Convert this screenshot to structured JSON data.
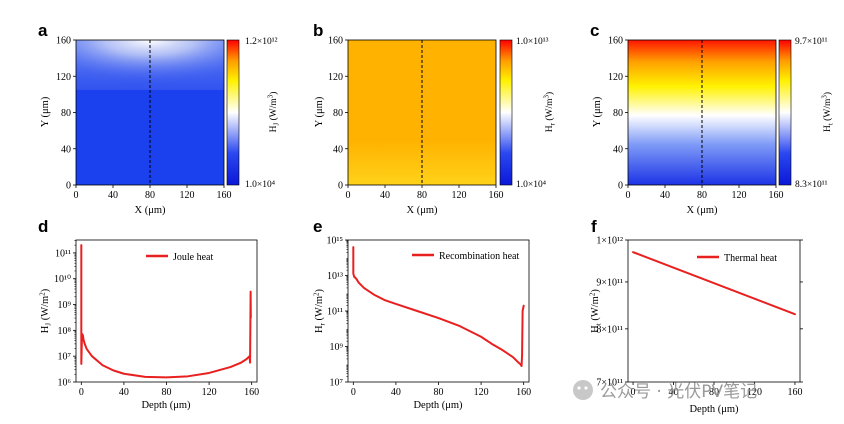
{
  "watermark": "公众号 · 光伏PV笔记",
  "chart_data": [
    {
      "id": "a",
      "panel_label": "a",
      "type": "heatmap",
      "xlabel": "X (μm)",
      "ylabel": "Y (μm)",
      "xlim": [
        0,
        160
      ],
      "ylim": [
        0,
        160
      ],
      "xticks": [
        "0",
        "40",
        "80",
        "120",
        "160"
      ],
      "yticks": [
        "0",
        "40",
        "80",
        "120",
        "160"
      ],
      "colorbar": {
        "label": "HJ (W/m3)",
        "label_main": "H",
        "label_sub": "J",
        "label_unit": " (W/m",
        "label_sup": "3",
        "label_end": ")",
        "max": "1.2×10¹²",
        "min": "1.0×10⁴",
        "scale": "blue-white-yellow-red"
      },
      "notes": "Bright spot near top at X≈80 μm; uniform blue below Y≈105 μm; dashed vertical line at X=80 μm"
    },
    {
      "id": "b",
      "panel_label": "b",
      "type": "heatmap",
      "xlabel": "X (μm)",
      "ylabel": "Y (μm)",
      "xlim": [
        0,
        160
      ],
      "ylim": [
        0,
        160
      ],
      "xticks": [
        "0",
        "40",
        "80",
        "120",
        "160"
      ],
      "yticks": [
        "0",
        "40",
        "80",
        "120",
        "160"
      ],
      "colorbar": {
        "label": "Hr (W/m3)",
        "label_main": "H",
        "label_sub": "r",
        "label_unit": " (W/m",
        "label_sup": "3",
        "label_end": ")",
        "max": "1.0×10¹³",
        "min": "1.0×10⁴",
        "scale": "blue-white-yellow-red"
      },
      "notes": "Nearly uniform orange field, lighter near bottom; dashed vertical line at X=80 μm"
    },
    {
      "id": "c",
      "panel_label": "c",
      "type": "heatmap",
      "xlabel": "X (μm)",
      "ylabel": "Y (μm)",
      "xlim": [
        0,
        160
      ],
      "ylim": [
        0,
        160
      ],
      "xticks": [
        "0",
        "40",
        "80",
        "120",
        "160"
      ],
      "yticks": [
        "0",
        "40",
        "80",
        "120",
        "160"
      ],
      "colorbar": {
        "label": "Ht (W/m3)",
        "label_main": "H",
        "label_sub": "t",
        "label_unit": " (W/m",
        "label_sup": "3",
        "label_end": ")",
        "max": "9.7×10¹¹",
        "min": "8.3×10¹¹",
        "scale": "blue-white-yellow-red"
      },
      "notes": "Linear vertical gradient: red at top, white mid, blue at bottom; dashed vertical line at X=80 μm"
    },
    {
      "id": "d",
      "panel_label": "d",
      "type": "line",
      "xlabel": "Depth (μm)",
      "ylabel": "HJ (W/m2)",
      "ylabel_main": "H",
      "ylabel_sub": "J",
      "ylabel_unit": " (W/m",
      "ylabel_sup": "2",
      "ylabel_end": ")",
      "yscale": "log",
      "xlim": [
        -5,
        165
      ],
      "ylim_log10": [
        6,
        11.5
      ],
      "xticks": [
        0,
        40,
        80,
        120,
        160
      ],
      "yticks_exp": [
        6,
        7,
        8,
        9,
        10,
        11
      ],
      "series": [
        {
          "name": "Joule heat",
          "color": "#e8201f",
          "x": [
            0,
            0,
            0.5,
            1,
            1.5,
            2,
            3,
            5,
            10,
            20,
            30,
            40,
            60,
            80,
            100,
            120,
            140,
            150,
            155,
            158,
            158.5,
            159,
            159.2
          ],
          "y_log10": [
            11.3,
            6.7,
            7.6,
            7.85,
            7.8,
            7.65,
            7.5,
            7.28,
            7.0,
            6.65,
            6.45,
            6.32,
            6.2,
            6.18,
            6.22,
            6.35,
            6.58,
            6.75,
            6.88,
            7.0,
            6.75,
            9.5,
            8.5
          ]
        }
      ]
    },
    {
      "id": "e",
      "panel_label": "e",
      "type": "line",
      "xlabel": "Depth (μm)",
      "ylabel": "Hr (W/m2)",
      "ylabel_main": "H",
      "ylabel_sub": "r",
      "ylabel_unit": " (W/m",
      "ylabel_sup": "2",
      "ylabel_end": ")",
      "yscale": "log",
      "xlim": [
        -5,
        165
      ],
      "ylim_log10": [
        7,
        15
      ],
      "xticks": [
        0,
        40,
        80,
        120,
        160
      ],
      "yticks_exp": [
        7,
        9,
        11,
        13,
        15
      ],
      "series": [
        {
          "name": "Recombination heat",
          "color": "#e8201f",
          "x": [
            0,
            0,
            0.5,
            1,
            1.5,
            3,
            5,
            10,
            20,
            30,
            40,
            60,
            80,
            100,
            120,
            130,
            140,
            150,
            155,
            157,
            158,
            158.5,
            159,
            160
          ],
          "y_log10": [
            14.6,
            13.1,
            13.0,
            12.9,
            12.9,
            12.8,
            12.6,
            12.3,
            11.9,
            11.6,
            11.4,
            11.0,
            10.6,
            10.15,
            9.55,
            9.15,
            8.8,
            8.4,
            8.1,
            8.0,
            7.9,
            8.5,
            11.0,
            11.3
          ]
        }
      ]
    },
    {
      "id": "f",
      "panel_label": "f",
      "type": "line",
      "xlabel": "Depth (μm)",
      "ylabel": "Ht (W/m2)",
      "ylabel_main": "H",
      "ylabel_sub": "t",
      "ylabel_unit": " (W/m",
      "ylabel_sup": "2",
      "ylabel_end": ")",
      "yscale": "log",
      "xlim": [
        -5,
        165
      ],
      "ylim": [
        700000000000,
        1000000000000
      ],
      "xticks": [
        0,
        40,
        80,
        120,
        160
      ],
      "yticks": [
        {
          "value": 700000000000,
          "label": "7×10¹¹"
        },
        {
          "value": 800000000000,
          "label": "8×10¹¹"
        },
        {
          "value": 900000000000,
          "label": "9×10¹¹"
        },
        {
          "value": 1000000000000,
          "label": "1×10¹²"
        }
      ],
      "series": [
        {
          "name": "Thermal heat",
          "color": "#e8201f",
          "x": [
            0,
            160
          ],
          "y": [
            970000000000,
            830000000000
          ]
        }
      ]
    }
  ]
}
